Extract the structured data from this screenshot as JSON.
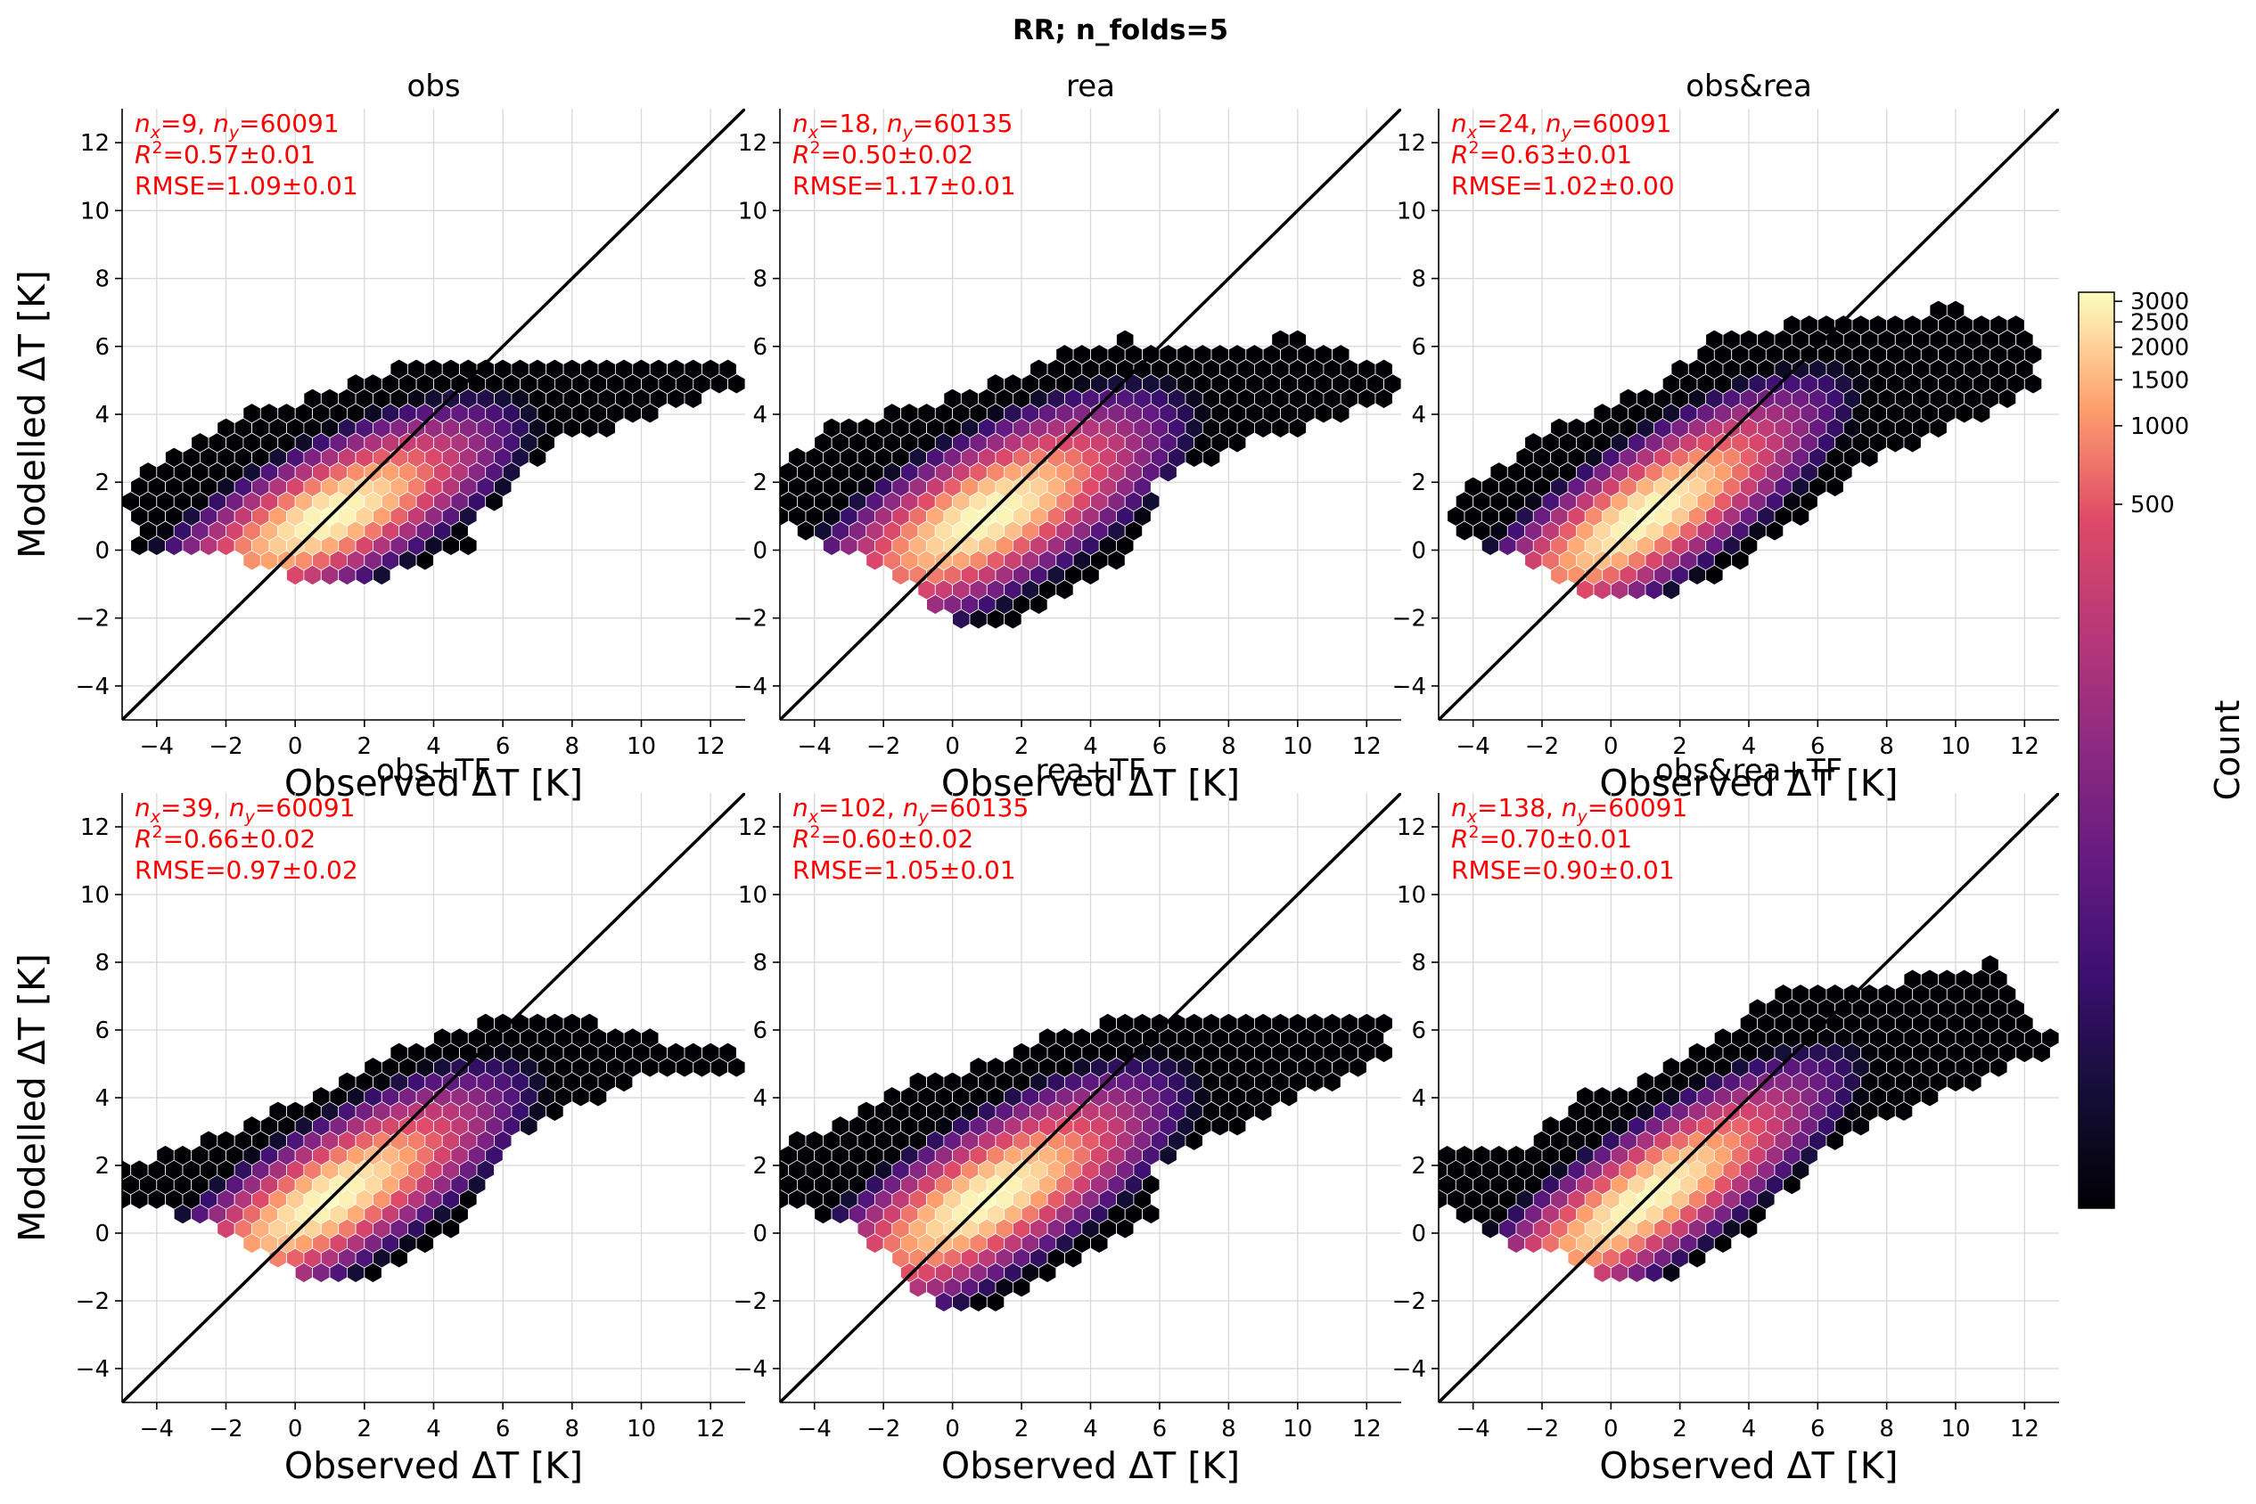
{
  "figure": {
    "suptitle": "RR; n_folds=5",
    "colorbar": {
      "label": "Count",
      "ticks": [
        {
          "value": 500,
          "label": "500"
        },
        {
          "value": 1000,
          "label": "1000"
        },
        {
          "value": 1500,
          "label": "1500"
        },
        {
          "value": 2000,
          "label": "2000"
        },
        {
          "value": 2500,
          "label": "2500"
        },
        {
          "value": 3000,
          "label": "3000"
        }
      ],
      "vmin": 1,
      "vmax": 3250,
      "colormap": "magma"
    }
  },
  "chart_data": [
    {
      "type": "hexbin",
      "title": "obs",
      "xlabel": "Observed ΔT [K]",
      "ylabel": "Modelled ΔT [K]",
      "xlim": [
        -5,
        13
      ],
      "ylim": [
        -5,
        13
      ],
      "xticks": [
        -4,
        -2,
        0,
        2,
        4,
        6,
        8,
        10,
        12
      ],
      "yticks": [
        -4,
        -2,
        0,
        2,
        4,
        6,
        8,
        10,
        12
      ],
      "reference_line": "1:1",
      "annotation": {
        "nx": "9",
        "ny": "60091",
        "r2": "0.57±0.01",
        "rmse_line": "RMSE=1.09±0.01"
      },
      "density": {
        "peak": [
          1.0,
          1.0
        ],
        "sx": 1.55,
        "sy": 0.95,
        "rho": 0.72,
        "max": 3200,
        "hull": [
          [
            -5.0,
            1.9
          ],
          [
            -3.0,
            3.3
          ],
          [
            -1.0,
            4.2
          ],
          [
            1.0,
            4.6
          ],
          [
            3.0,
            5.4
          ],
          [
            7.0,
            5.4
          ],
          [
            13.0,
            5.4
          ],
          [
            13.0,
            4.8
          ],
          [
            9.0,
            3.5
          ],
          [
            8.0,
            3.4
          ],
          [
            6.5,
            2.2
          ],
          [
            6.0,
            1.6
          ],
          [
            5.2,
            1.0
          ],
          [
            5.0,
            0.0
          ],
          [
            3.0,
            -0.5
          ],
          [
            2.4,
            -0.9
          ],
          [
            0.0,
            -1.0
          ],
          [
            -0.5,
            -0.7
          ],
          [
            -2.0,
            0.0
          ],
          [
            -4.5,
            0.0
          ]
        ]
      }
    },
    {
      "type": "hexbin",
      "title": "rea",
      "xlabel": "Observed ΔT [K]",
      "ylabel": "",
      "xlim": [
        -5,
        13
      ],
      "ylim": [
        -5,
        13
      ],
      "xticks": [
        -4,
        -2,
        0,
        2,
        4,
        6,
        8,
        10,
        12
      ],
      "yticks": [
        -4,
        -2,
        0,
        2,
        4,
        6,
        8,
        10,
        12
      ],
      "reference_line": "1:1",
      "annotation": {
        "nx": "18",
        "ny": "60135",
        "r2": "0.50±0.02",
        "rmse_line": "RMSE=1.17±0.01"
      },
      "density": {
        "peak": [
          1.0,
          1.0
        ],
        "sx": 1.6,
        "sy": 1.05,
        "rho": 0.7,
        "max": 3200,
        "hull": [
          [
            -5.0,
            2.5
          ],
          [
            -3.5,
            3.6
          ],
          [
            -2.0,
            4.0
          ],
          [
            0.0,
            4.6
          ],
          [
            2.0,
            5.2
          ],
          [
            3.5,
            6.0
          ],
          [
            5.0,
            6.2
          ],
          [
            8.0,
            6.0
          ],
          [
            10.0,
            6.3
          ],
          [
            13.0,
            5.2
          ],
          [
            13.0,
            4.5
          ],
          [
            10.5,
            3.6
          ],
          [
            9.0,
            3.4
          ],
          [
            6.0,
            2.0
          ],
          [
            5.6,
            0.3
          ],
          [
            4.5,
            -0.6
          ],
          [
            2.5,
            -1.8
          ],
          [
            1.5,
            -2.3
          ],
          [
            0.5,
            -2.3
          ],
          [
            -0.7,
            -1.5
          ],
          [
            -1.8,
            -0.6
          ],
          [
            -3.5,
            0.0
          ],
          [
            -5.0,
            1.0
          ]
        ]
      }
    },
    {
      "type": "hexbin",
      "title": "obs&rea",
      "xlabel": "Observed ΔT [K]",
      "ylabel": "",
      "xlim": [
        -5,
        13
      ],
      "ylim": [
        -5,
        13
      ],
      "xticks": [
        -4,
        -2,
        0,
        2,
        4,
        6,
        8,
        10,
        12
      ],
      "yticks": [
        -4,
        -2,
        0,
        2,
        4,
        6,
        8,
        10,
        12
      ],
      "reference_line": "1:1",
      "annotation": {
        "nx": "24",
        "ny": "60091",
        "r2": "0.63±0.01",
        "rmse_line": "RMSE=1.02±0.00"
      },
      "density": {
        "peak": [
          1.0,
          1.0
        ],
        "sx": 1.6,
        "sy": 1.15,
        "rho": 0.8,
        "max": 3200,
        "hull": [
          [
            -4.5,
            1.6
          ],
          [
            -3.0,
            2.7
          ],
          [
            -2.0,
            3.4
          ],
          [
            0.0,
            4.2
          ],
          [
            1.5,
            5.0
          ],
          [
            3.0,
            6.2
          ],
          [
            6.0,
            6.8
          ],
          [
            10.0,
            7.1
          ],
          [
            12.5,
            6.5
          ],
          [
            12.5,
            5.0
          ],
          [
            10.0,
            3.6
          ],
          [
            8.0,
            2.8
          ],
          [
            6.5,
            1.8
          ],
          [
            5.5,
            0.9
          ],
          [
            4.2,
            0.0
          ],
          [
            3.0,
            -0.8
          ],
          [
            1.5,
            -1.3
          ],
          [
            0.0,
            -1.4
          ],
          [
            -1.5,
            -1.0
          ],
          [
            -2.5,
            -0.3
          ],
          [
            -4.5,
            0.4
          ]
        ]
      }
    },
    {
      "type": "hexbin",
      "title": "obs+TF",
      "xlabel": "Observed ΔT [K]",
      "ylabel": "Modelled ΔT [K]",
      "xlim": [
        -5,
        13
      ],
      "ylim": [
        -5,
        13
      ],
      "xticks": [
        -4,
        -2,
        0,
        2,
        4,
        6,
        8,
        10,
        12
      ],
      "yticks": [
        -4,
        -2,
        0,
        2,
        4,
        6,
        8,
        10,
        12
      ],
      "reference_line": "1:1",
      "annotation": {
        "nx": "39",
        "ny": "60091",
        "r2": "0.66±0.02",
        "rmse_line": "RMSE=0.97±0.02"
      },
      "density": {
        "peak": [
          1.0,
          1.0
        ],
        "sx": 1.6,
        "sy": 1.1,
        "rho": 0.78,
        "max": 3200,
        "hull": [
          [
            -5.0,
            1.9
          ],
          [
            -3.0,
            2.6
          ],
          [
            -1.0,
            3.5
          ],
          [
            0.5,
            4.0
          ],
          [
            2.0,
            5.0
          ],
          [
            4.0,
            5.8
          ],
          [
            6.0,
            6.4
          ],
          [
            8.0,
            6.3
          ],
          [
            11.0,
            5.7
          ],
          [
            13.0,
            5.3
          ],
          [
            13.0,
            4.8
          ],
          [
            10.0,
            4.5
          ],
          [
            8.0,
            3.7
          ],
          [
            6.0,
            2.6
          ],
          [
            5.5,
            1.5
          ],
          [
            5.0,
            0.3
          ],
          [
            3.6,
            -0.5
          ],
          [
            2.4,
            -1.2
          ],
          [
            1.2,
            -1.5
          ],
          [
            0.0,
            -1.3
          ],
          [
            -1.0,
            -0.6
          ],
          [
            -3.0,
            0.4
          ],
          [
            -5.0,
            1.0
          ]
        ]
      }
    },
    {
      "type": "hexbin",
      "title": "rea+TF",
      "xlabel": "Observed ΔT [K]",
      "ylabel": "",
      "xlim": [
        -5,
        13
      ],
      "ylim": [
        -5,
        13
      ],
      "xticks": [
        -4,
        -2,
        0,
        2,
        4,
        6,
        8,
        10,
        12
      ],
      "yticks": [
        -4,
        -2,
        0,
        2,
        4,
        6,
        8,
        10,
        12
      ],
      "reference_line": "1:1",
      "annotation": {
        "nx": "102",
        "ny": "60135",
        "r2": "0.60±0.02",
        "rmse_line": "RMSE=1.05±0.01"
      },
      "density": {
        "peak": [
          1.0,
          1.0
        ],
        "sx": 1.6,
        "sy": 1.1,
        "rho": 0.75,
        "max": 3200,
        "hull": [
          [
            -5.0,
            2.6
          ],
          [
            -3.0,
            3.3
          ],
          [
            -1.0,
            4.5
          ],
          [
            1.5,
            5.2
          ],
          [
            3.0,
            6.0
          ],
          [
            5.0,
            6.3
          ],
          [
            8.0,
            6.6
          ],
          [
            10.0,
            6.3
          ],
          [
            12.5,
            6.2
          ],
          [
            13.0,
            5.2
          ],
          [
            11.0,
            4.4
          ],
          [
            9.0,
            3.5
          ],
          [
            6.0,
            2.0
          ],
          [
            5.8,
            0.5
          ],
          [
            4.5,
            -0.4
          ],
          [
            3.0,
            -1.0
          ],
          [
            1.5,
            -2.0
          ],
          [
            0.5,
            -2.3
          ],
          [
            -0.6,
            -2.1
          ],
          [
            -1.5,
            -1.2
          ],
          [
            -2.5,
            0.0
          ],
          [
            -5.0,
            1.0
          ]
        ]
      }
    },
    {
      "type": "hexbin",
      "title": "obs&rea+TF",
      "xlabel": "Observed ΔT [K]",
      "ylabel": "",
      "xlim": [
        -5,
        13
      ],
      "ylim": [
        -5,
        13
      ],
      "xticks": [
        -4,
        -2,
        0,
        2,
        4,
        6,
        8,
        10,
        12
      ],
      "yticks": [
        -4,
        -2,
        0,
        2,
        4,
        6,
        8,
        10,
        12
      ],
      "reference_line": "1:1",
      "annotation": {
        "nx": "138",
        "ny": "60091",
        "r2": "0.70±0.01",
        "rmse_line": "RMSE=0.90±0.01"
      },
      "density": {
        "peak": [
          1.0,
          1.0
        ],
        "sx": 1.65,
        "sy": 1.2,
        "rho": 0.83,
        "max": 3200,
        "hull": [
          [
            -5.0,
            2.4
          ],
          [
            -2.5,
            2.6
          ],
          [
            -1.0,
            4.0
          ],
          [
            1.0,
            4.5
          ],
          [
            2.5,
            5.5
          ],
          [
            4.0,
            6.5
          ],
          [
            5.5,
            7.4
          ],
          [
            8.0,
            7.4
          ],
          [
            11.0,
            8.0
          ],
          [
            13.0,
            5.5
          ],
          [
            12.0,
            5.0
          ],
          [
            9.0,
            3.8
          ],
          [
            7.0,
            2.9
          ],
          [
            5.5,
            1.8
          ],
          [
            4.5,
            0.2
          ],
          [
            3.0,
            -0.7
          ],
          [
            1.5,
            -1.3
          ],
          [
            0.0,
            -1.5
          ],
          [
            -1.5,
            -0.6
          ],
          [
            -3.0,
            -0.3
          ],
          [
            -5.0,
            1.0
          ]
        ]
      }
    }
  ]
}
